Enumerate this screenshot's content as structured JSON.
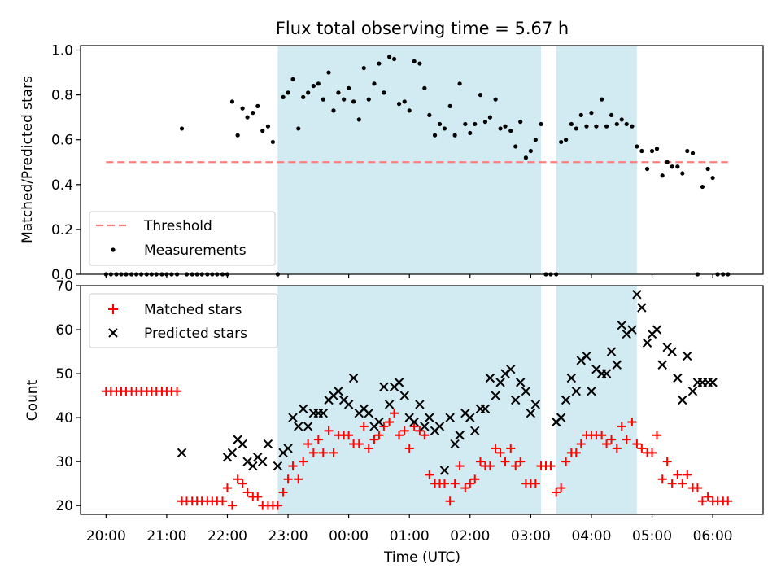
{
  "chart_data": [
    {
      "type": "scatter",
      "title": "Flux total observing time = 5.67 h",
      "ylabel": "Matched/Predicted stars",
      "xlabel": "",
      "ylim": [
        0,
        1.02
      ],
      "yticks": [
        "0.0",
        "0.2",
        "0.4",
        "0.6",
        "0.8",
        "1.0"
      ],
      "legend_position": "lower-left",
      "grid": false,
      "shaded_intervals_hours": [
        [
          22.83,
          27.17
        ],
        [
          27.42,
          28.75
        ]
      ],
      "shade_color": "#add8e6",
      "threshold": {
        "name": "Threshold",
        "value": 0.5,
        "x_range": [
          20.0,
          30.25
        ],
        "color": "#ff7f7f",
        "dash": true
      },
      "series": [
        {
          "name": "Measurements",
          "color": "#000000",
          "marker": "dot",
          "x": [
            20.0,
            20.08,
            20.17,
            20.25,
            20.33,
            20.42,
            20.5,
            20.58,
            20.67,
            20.75,
            20.83,
            20.92,
            21.0,
            21.08,
            21.17,
            21.25,
            21.33,
            21.42,
            21.5,
            21.58,
            21.67,
            21.75,
            21.83,
            21.92,
            22.0,
            22.08,
            22.17,
            22.25,
            22.33,
            22.42,
            22.5,
            22.58,
            22.67,
            22.75,
            22.83,
            22.92,
            23.0,
            23.08,
            23.17,
            23.25,
            23.33,
            23.42,
            23.5,
            23.58,
            23.67,
            23.75,
            23.83,
            23.92,
            24.0,
            24.08,
            24.17,
            24.25,
            24.33,
            24.42,
            24.5,
            24.58,
            24.67,
            24.75,
            24.83,
            24.92,
            25.0,
            25.08,
            25.17,
            25.25,
            25.33,
            25.42,
            25.5,
            25.58,
            25.67,
            25.75,
            25.83,
            25.92,
            26.0,
            26.08,
            26.17,
            26.25,
            26.33,
            26.42,
            26.5,
            26.58,
            26.67,
            26.75,
            26.83,
            26.92,
            27.0,
            27.08,
            27.17,
            27.25,
            27.33,
            27.42,
            27.5,
            27.58,
            27.67,
            27.75,
            27.83,
            27.92,
            28.0,
            28.08,
            28.17,
            28.25,
            28.33,
            28.42,
            28.5,
            28.58,
            28.67,
            28.75,
            28.83,
            28.92,
            29.0,
            29.08,
            29.17,
            29.25,
            29.33,
            29.42,
            29.5,
            29.58,
            29.67,
            29.75,
            29.83,
            29.92,
            30.0,
            30.08,
            30.17,
            30.25
          ],
          "y": [
            0,
            0,
            0,
            0,
            0,
            0,
            0,
            0,
            0,
            0,
            0,
            0,
            0,
            0,
            0,
            0.65,
            0,
            0,
            0,
            0,
            0,
            0,
            0,
            0,
            0,
            0.77,
            0.62,
            0.74,
            0.7,
            0.72,
            0.75,
            0.64,
            0.66,
            0.59,
            0,
            0.79,
            0.81,
            0.87,
            0.65,
            0.79,
            0.81,
            0.84,
            0.85,
            0.78,
            0.9,
            0.73,
            0.81,
            0.78,
            0.83,
            0.77,
            0.69,
            0.92,
            0.78,
            0.85,
            0.94,
            0.81,
            0.97,
            0.96,
            0.76,
            0.77,
            0.73,
            0.95,
            0.94,
            0.83,
            0.71,
            0.62,
            0.67,
            0.65,
            0.75,
            0.62,
            0.85,
            0.67,
            0.63,
            0.67,
            0.8,
            0.68,
            0.7,
            0.78,
            0.65,
            0.66,
            0.64,
            0.57,
            0.68,
            0.52,
            0.55,
            0.6,
            0.67,
            0,
            0,
            0,
            0.59,
            0.6,
            0.67,
            0.65,
            0.71,
            0.66,
            0.72,
            0.66,
            0.78,
            0.66,
            0.71,
            0.67,
            0.69,
            0.67,
            0.66,
            0.57,
            0.55,
            0.47,
            0.55,
            0.56,
            0.44,
            0.5,
            0.48,
            0.48,
            0.45,
            0.55,
            0.54,
            0,
            0.39,
            0.47,
            0.43,
            0,
            0,
            0
          ]
        }
      ]
    },
    {
      "type": "scatter",
      "title": "",
      "ylabel": "Count",
      "xlabel": "Time (UTC)",
      "ylim": [
        18,
        70
      ],
      "yticks": [
        "20",
        "30",
        "40",
        "50",
        "60",
        "70"
      ],
      "xlim_hours": [
        19.58,
        30.83
      ],
      "xticks": [
        "20:00",
        "21:00",
        "22:00",
        "23:00",
        "00:00",
        "01:00",
        "02:00",
        "03:00",
        "04:00",
        "05:00",
        "06:00"
      ],
      "legend_position": "top-left",
      "grid": false,
      "shaded_intervals_hours": [
        [
          22.83,
          27.17
        ],
        [
          27.42,
          28.75
        ]
      ],
      "shade_color": "#add8e6",
      "series": [
        {
          "name": "Matched stars",
          "color": "#ff0000",
          "marker": "plus",
          "x": [
            20.0,
            20.08,
            20.17,
            20.25,
            20.33,
            20.42,
            20.5,
            20.58,
            20.67,
            20.75,
            20.83,
            20.92,
            21.0,
            21.08,
            21.17,
            21.25,
            21.33,
            21.42,
            21.5,
            21.58,
            21.67,
            21.75,
            21.83,
            21.92,
            22.0,
            22.08,
            22.17,
            22.25,
            22.33,
            22.42,
            22.5,
            22.58,
            22.67,
            22.75,
            22.83,
            22.92,
            23.0,
            23.08,
            23.17,
            23.25,
            23.33,
            23.42,
            23.5,
            23.58,
            23.67,
            23.75,
            23.83,
            23.92,
            24.0,
            24.08,
            24.17,
            24.25,
            24.33,
            24.42,
            24.5,
            24.58,
            24.67,
            24.75,
            24.83,
            24.92,
            25.0,
            25.08,
            25.17,
            25.25,
            25.33,
            25.42,
            25.5,
            25.58,
            25.67,
            25.75,
            25.83,
            25.92,
            26.0,
            26.08,
            26.17,
            26.25,
            26.33,
            26.42,
            26.5,
            26.58,
            26.67,
            26.75,
            26.83,
            26.92,
            27.0,
            27.08,
            27.17,
            27.25,
            27.33,
            27.42,
            27.5,
            27.58,
            27.67,
            27.75,
            27.83,
            27.92,
            28.0,
            28.08,
            28.17,
            28.25,
            28.33,
            28.42,
            28.5,
            28.58,
            28.67,
            28.75,
            28.83,
            28.92,
            29.0,
            29.08,
            29.17,
            29.25,
            29.33,
            29.42,
            29.5,
            29.58,
            29.67,
            29.75,
            29.83,
            29.92,
            30.0,
            30.08,
            30.17,
            30.25
          ],
          "y": [
            46,
            46,
            46,
            46,
            46,
            46,
            46,
            46,
            46,
            46,
            46,
            46,
            46,
            46,
            46,
            21,
            21,
            21,
            21,
            21,
            21,
            21,
            21,
            21,
            24,
            20,
            26,
            25,
            23,
            22,
            22,
            20,
            20,
            20,
            20,
            23,
            26,
            29,
            26,
            30,
            34,
            32,
            35,
            32,
            37,
            32,
            36,
            36,
            36,
            34,
            34,
            38,
            33,
            35,
            36,
            38,
            39,
            41,
            36,
            37,
            33,
            38,
            37,
            36,
            27,
            25,
            25,
            25,
            21,
            25,
            29,
            24,
            25,
            26,
            30,
            29,
            29,
            33,
            32,
            30,
            33,
            29,
            30,
            25,
            25,
            25,
            29,
            29,
            29,
            23,
            24,
            30,
            32,
            32,
            34,
            36,
            36,
            36,
            36,
            34,
            35,
            33,
            38,
            35,
            39,
            34,
            33,
            32,
            32,
            36,
            26,
            30,
            25,
            27,
            25,
            27,
            24,
            24,
            21,
            22,
            21,
            21,
            21,
            21
          ]
        },
        {
          "name": "Predicted stars",
          "color": "#000000",
          "marker": "x",
          "x": [
            21.25,
            22.0,
            22.08,
            22.17,
            22.25,
            22.33,
            22.42,
            22.5,
            22.58,
            22.67,
            22.83,
            22.92,
            23.0,
            23.08,
            23.17,
            23.25,
            23.33,
            23.42,
            23.5,
            23.58,
            23.67,
            23.75,
            23.83,
            23.92,
            24.0,
            24.08,
            24.17,
            24.25,
            24.33,
            24.42,
            24.5,
            24.58,
            24.67,
            24.75,
            24.83,
            24.92,
            25.0,
            25.08,
            25.17,
            25.25,
            25.33,
            25.42,
            25.5,
            25.58,
            25.67,
            25.75,
            25.83,
            25.92,
            26.0,
            26.08,
            26.17,
            26.25,
            26.33,
            26.42,
            26.5,
            26.58,
            26.67,
            26.75,
            26.83,
            26.92,
            27.0,
            27.08,
            27.42,
            27.5,
            27.58,
            27.67,
            27.75,
            27.83,
            27.92,
            28.0,
            28.08,
            28.17,
            28.25,
            28.33,
            28.42,
            28.5,
            28.58,
            28.67,
            28.75,
            28.83,
            28.92,
            29.0,
            29.08,
            29.17,
            29.25,
            29.33,
            29.42,
            29.5,
            29.58,
            29.67,
            29.75,
            29.83,
            29.92,
            30.0
          ],
          "y": [
            32,
            31,
            32,
            35,
            34,
            30,
            29,
            31,
            30,
            34,
            29,
            32,
            33,
            40,
            38,
            42,
            38,
            41,
            41,
            41,
            44,
            45,
            46,
            44,
            43,
            49,
            41,
            42,
            41,
            38,
            39,
            47,
            43,
            47,
            48,
            45,
            40,
            39,
            43,
            38,
            40,
            37,
            38,
            28,
            40,
            34,
            36,
            41,
            40,
            37,
            42,
            42,
            49,
            45,
            48,
            50,
            51,
            44,
            48,
            46,
            41,
            43,
            39,
            40,
            44,
            49,
            46,
            53,
            54,
            46,
            51,
            50,
            50,
            55,
            52,
            61,
            59,
            60,
            68,
            65,
            57,
            59,
            60,
            52,
            56,
            55,
            49,
            44,
            54,
            46,
            48,
            48,
            48,
            48
          ]
        }
      ]
    }
  ]
}
